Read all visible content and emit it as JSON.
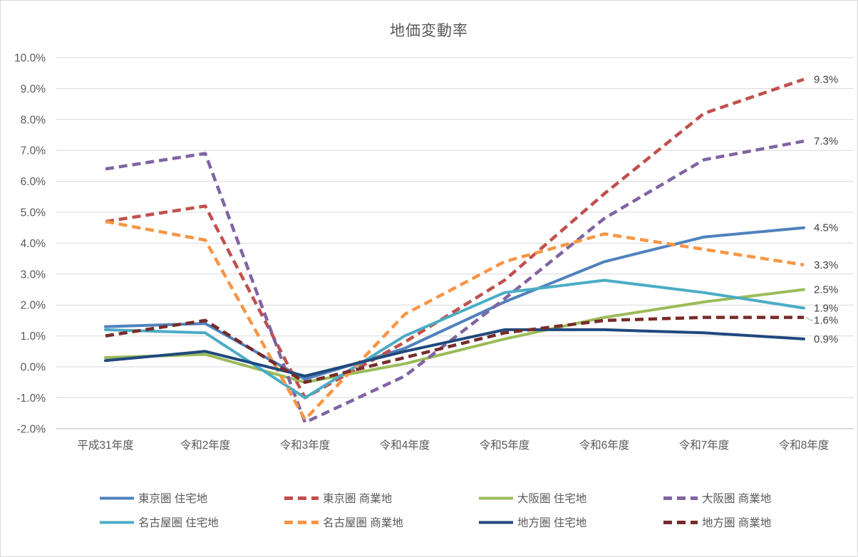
{
  "title": "地価変動率",
  "colors": {
    "grid": "#d9d9d9",
    "axis_line": "#bfbfbf",
    "axis_text": "#595959",
    "end_label_text": "#404040",
    "leader_line": "#a6a6a6"
  },
  "chart_data": {
    "type": "line",
    "title": "地価変動率",
    "xlabel": "",
    "ylabel": "",
    "ylim": [
      -2,
      10
    ],
    "y_tick_step": 1,
    "grid": true,
    "legend_position": "bottom",
    "categories": [
      "平成31年度",
      "令和2年度",
      "令和3年度",
      "令和4年度",
      "令和5年度",
      "令和6年度",
      "令和7年度",
      "令和8年度"
    ],
    "y_ticks": [
      "10.0%",
      "9.0%",
      "8.0%",
      "7.0%",
      "6.0%",
      "5.0%",
      "4.0%",
      "3.0%",
      "2.0%",
      "1.0%",
      "0.0%",
      "-1.0%",
      "-2.0%"
    ],
    "series": [
      {
        "key": "tokyo-residential",
        "name": "東京圏 住宅地",
        "color": "#4F81BD",
        "dash": false,
        "values": [
          1.3,
          1.4,
          -0.4,
          0.6,
          2.1,
          3.4,
          4.2,
          4.5
        ],
        "end_label": "4.5%"
      },
      {
        "key": "tokyo-commercial",
        "name": "東京圏 商業地",
        "color": "#C0504D",
        "dash": true,
        "values": [
          4.7,
          5.2,
          -1.0,
          0.8,
          2.8,
          5.6,
          8.2,
          9.3
        ],
        "end_label": "9.3%"
      },
      {
        "key": "osaka-residential",
        "name": "大阪圏 住宅地",
        "color": "#9BBB59",
        "dash": false,
        "values": [
          0.3,
          0.4,
          -0.5,
          0.1,
          0.9,
          1.6,
          2.1,
          2.5
        ],
        "end_label": "2.5%"
      },
      {
        "key": "osaka-commercial",
        "name": "大阪圏 商業地",
        "color": "#8064A2",
        "dash": true,
        "values": [
          6.4,
          6.9,
          -1.8,
          -0.3,
          2.2,
          4.8,
          6.7,
          7.3
        ],
        "end_label": "7.3%"
      },
      {
        "key": "nagoya-residential",
        "name": "名古屋圏 住宅地",
        "color": "#4BACC6",
        "dash": false,
        "values": [
          1.2,
          1.1,
          -1.0,
          1.0,
          2.4,
          2.8,
          2.4,
          1.9
        ],
        "end_label": "1.9%"
      },
      {
        "key": "nagoya-commercial",
        "name": "名古屋圏 商業地",
        "color": "#F79646",
        "dash": true,
        "values": [
          4.7,
          4.1,
          -1.7,
          1.7,
          3.4,
          4.3,
          3.8,
          3.3
        ],
        "end_label": "3.3%"
      },
      {
        "key": "regional-residential",
        "name": "地方圏 住宅地",
        "color": "#1F497D",
        "dash": false,
        "values": [
          0.2,
          0.5,
          -0.3,
          0.5,
          1.2,
          1.2,
          1.1,
          0.9
        ],
        "end_label": "0.9%"
      },
      {
        "key": "regional-commercial",
        "name": "地方圏 商業地",
        "color": "#772C2A",
        "dash": true,
        "values": [
          1.0,
          1.5,
          -0.5,
          0.3,
          1.1,
          1.5,
          1.6,
          1.6
        ],
        "end_label": "1.6%"
      }
    ]
  }
}
